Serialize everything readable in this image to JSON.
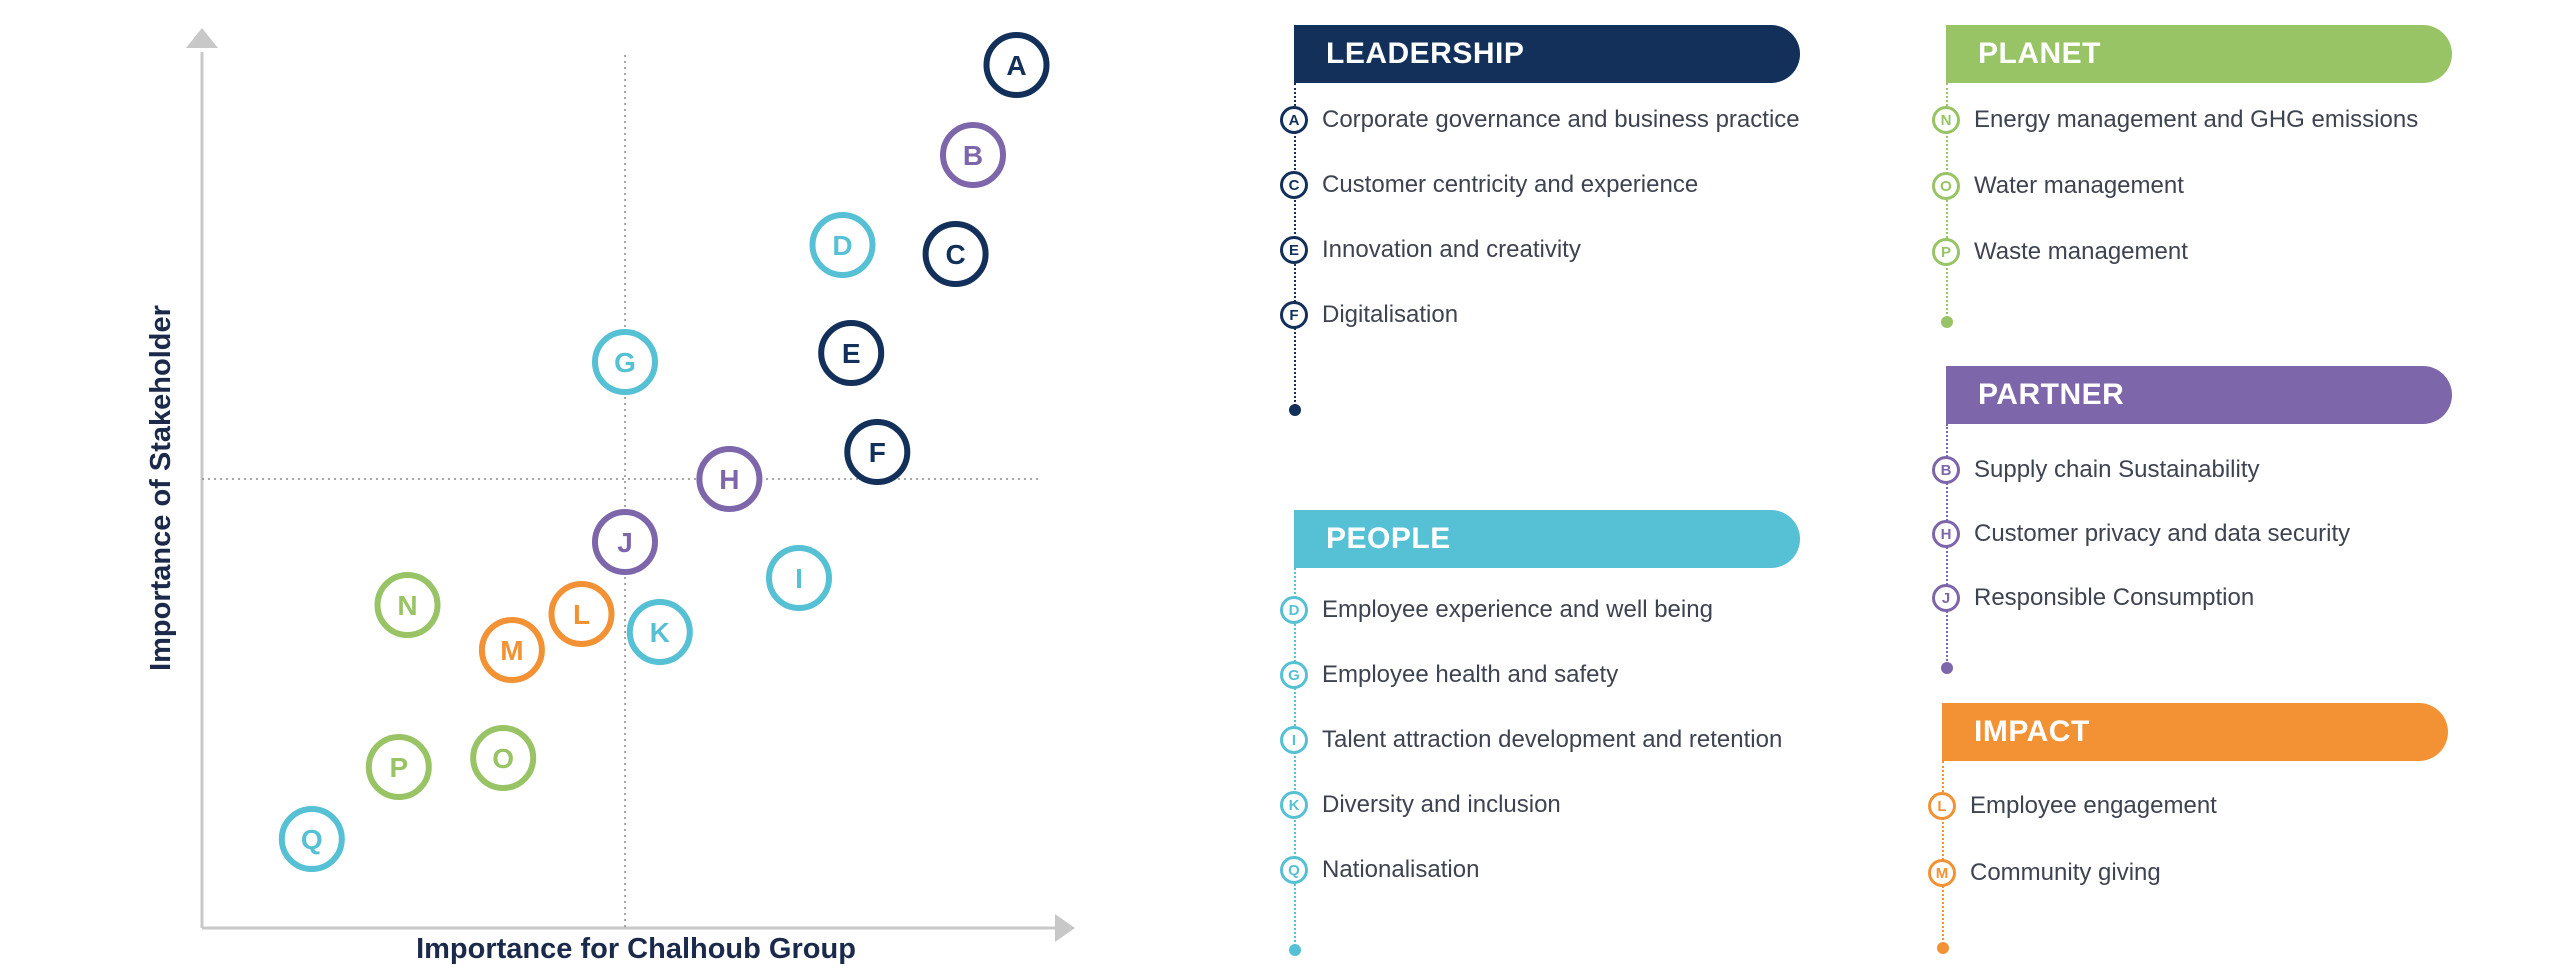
{
  "colors": {
    "leadership": "#12305a",
    "planet": "#98c466",
    "partner": "#7e66ab",
    "people": "#56c0d4",
    "impact": "#f39234",
    "axis": "#c8c8c8",
    "divider": "#8a8a8a"
  },
  "chart_data": {
    "type": "scatter",
    "title": "",
    "xlabel": "Importance for Chalhoub Group",
    "ylabel": "Importance of Stakeholder",
    "xlim": [
      0,
      10
    ],
    "ylim": [
      0,
      10
    ],
    "threshold": {
      "x": 5.0,
      "y": 4.9
    },
    "grid": false,
    "points": [
      {
        "label": "A",
        "group": "leadership",
        "x": 9.5,
        "y": 9.5
      },
      {
        "label": "B",
        "group": "partner",
        "x": 9.0,
        "y": 8.5
      },
      {
        "label": "C",
        "group": "leadership",
        "x": 8.8,
        "y": 7.4
      },
      {
        "label": "D",
        "group": "people",
        "x": 7.5,
        "y": 7.5
      },
      {
        "label": "E",
        "group": "leadership",
        "x": 7.6,
        "y": 6.3
      },
      {
        "label": "F",
        "group": "leadership",
        "x": 7.9,
        "y": 5.2
      },
      {
        "label": "G",
        "group": "people",
        "x": 5.0,
        "y": 6.2
      },
      {
        "label": "H",
        "group": "partner",
        "x": 6.2,
        "y": 4.9
      },
      {
        "label": "I",
        "group": "people",
        "x": 7.0,
        "y": 3.8
      },
      {
        "label": "J",
        "group": "partner",
        "x": 5.0,
        "y": 4.2
      },
      {
        "label": "K",
        "group": "people",
        "x": 5.4,
        "y": 3.2
      },
      {
        "label": "L",
        "group": "impact",
        "x": 4.5,
        "y": 3.4
      },
      {
        "label": "M",
        "group": "impact",
        "x": 3.7,
        "y": 3.0
      },
      {
        "label": "N",
        "group": "planet",
        "x": 2.5,
        "y": 3.5
      },
      {
        "label": "O",
        "group": "planet",
        "x": 3.6,
        "y": 1.8
      },
      {
        "label": "P",
        "group": "planet",
        "x": 2.4,
        "y": 1.7
      },
      {
        "label": "Q",
        "group": "people",
        "x": 1.4,
        "y": 0.9
      }
    ]
  },
  "legend": {
    "leadership": {
      "title": "LEADERSHIP",
      "items": [
        {
          "letter": "A",
          "label": "Corporate governance and business practice"
        },
        {
          "letter": "C",
          "label": "Customer centricity and experience"
        },
        {
          "letter": "E",
          "label": "Innovation and creativity"
        },
        {
          "letter": "F",
          "label": "Digitalisation"
        }
      ]
    },
    "people": {
      "title": "PEOPLE",
      "items": [
        {
          "letter": "D",
          "label": "Employee experience and well being"
        },
        {
          "letter": "G",
          "label": "Employee health and safety"
        },
        {
          "letter": "I",
          "label": "Talent attraction development and retention"
        },
        {
          "letter": "K",
          "label": "Diversity and inclusion"
        },
        {
          "letter": "Q",
          "label": "Nationalisation"
        }
      ]
    },
    "planet": {
      "title": "PLANET",
      "items": [
        {
          "letter": "N",
          "label": "Energy management and GHG emissions"
        },
        {
          "letter": "O",
          "label": "Water management"
        },
        {
          "letter": "P",
          "label": "Waste management"
        }
      ]
    },
    "partner": {
      "title": "PARTNER",
      "items": [
        {
          "letter": "B",
          "label": "Supply chain Sustainability"
        },
        {
          "letter": "H",
          "label": "Customer privacy and data security"
        },
        {
          "letter": "J",
          "label": "Responsible Consumption"
        }
      ]
    },
    "impact": {
      "title": "IMPACT",
      "items": [
        {
          "letter": "L",
          "label": "Employee engagement"
        },
        {
          "letter": "M",
          "label": "Community giving"
        }
      ]
    }
  }
}
